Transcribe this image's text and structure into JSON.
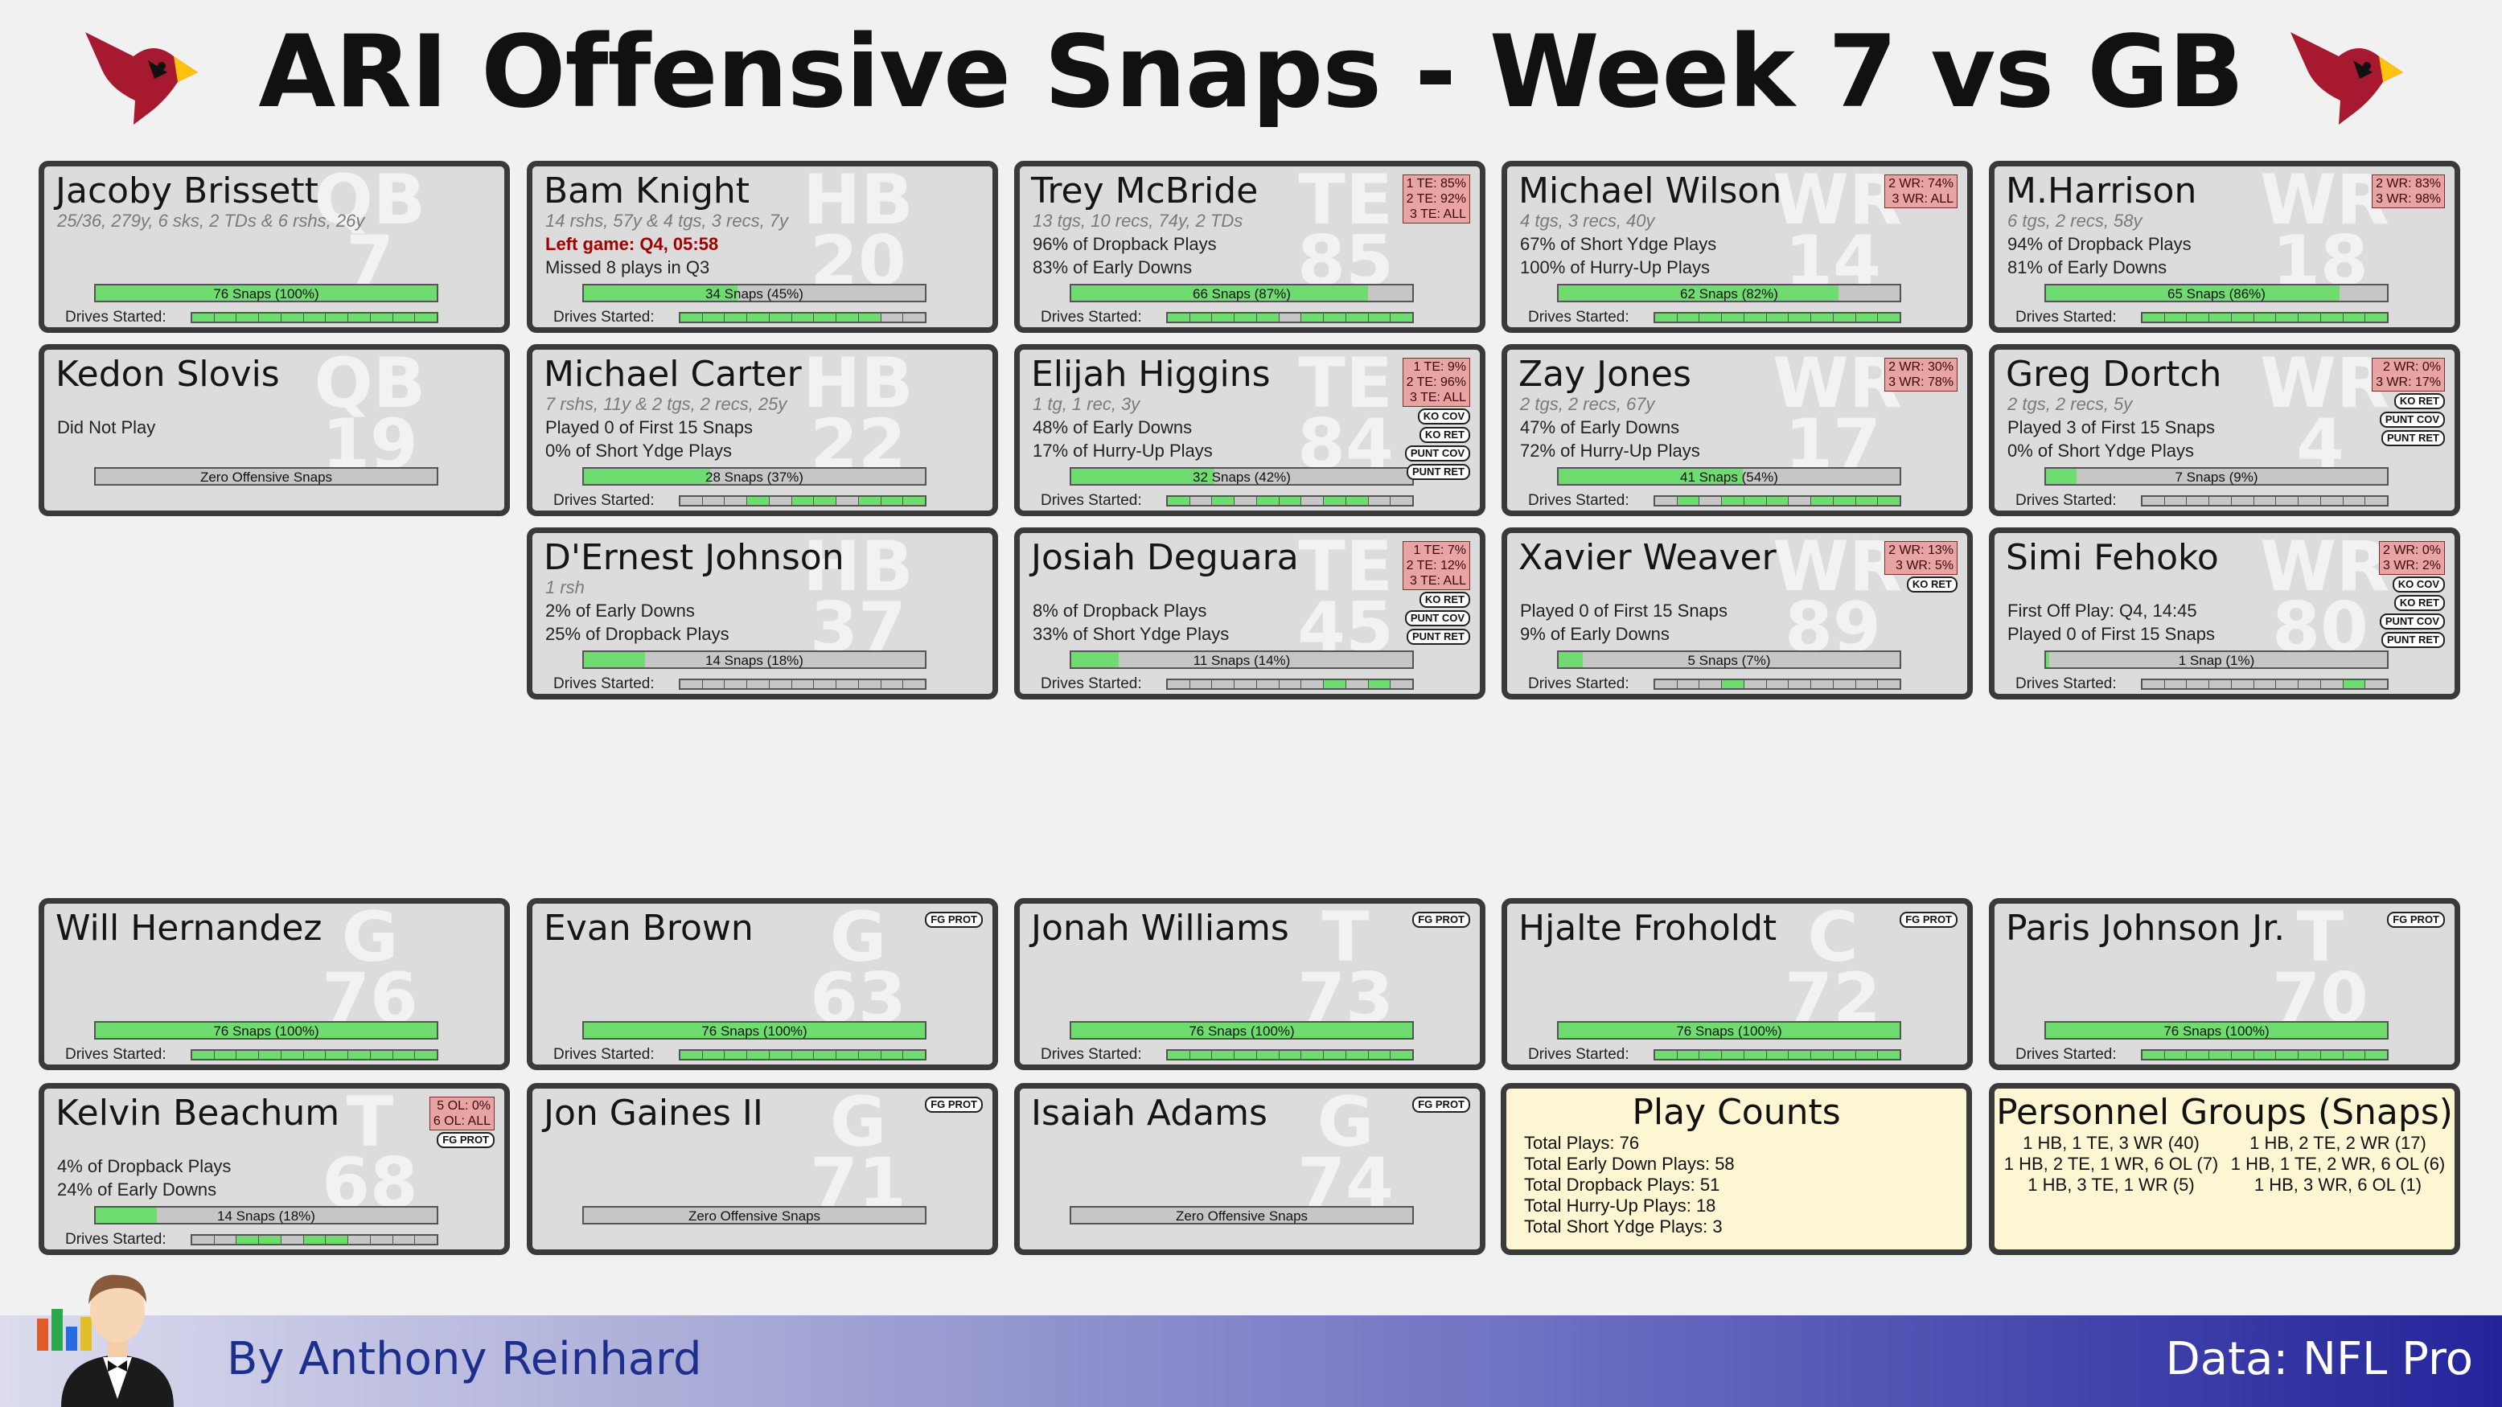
{
  "header": {
    "title": "ARI Offensive Snaps - Week 7 vs GB"
  },
  "colors": {
    "snap_fill": "#6fdc6f",
    "card_bg": "#dcdcdc",
    "info_bg": "#fcf6d3",
    "rate_box": "#e8a3a3",
    "left_game": "#a00000"
  },
  "skill_players": [
    {
      "name": "Jacoby Brissett",
      "pos": "QB",
      "num": "7",
      "sub": "25/36, 279y, 6 sks, 2 TDs & 6 rshs, 26y",
      "red": "",
      "line1": "",
      "line2": "",
      "snaps": "76 Snaps (100%)",
      "snap_pct": 1.0,
      "drives": [
        1,
        1,
        1,
        1,
        1,
        1,
        1,
        1,
        1,
        1,
        1
      ],
      "box": [],
      "badges": []
    },
    {
      "name": "Bam Knight",
      "pos": "HB",
      "num": "20",
      "sub": "14 rshs, 57y & 4 tgs, 3 recs, 7y",
      "red": "Left game: Q4, 05:58",
      "line1": "",
      "line2": "Missed 8 plays in Q3",
      "snaps": "34 Snaps (45%)",
      "snap_pct": 0.45,
      "drives": [
        1,
        1,
        1,
        1,
        1,
        1,
        1,
        1,
        1,
        0,
        0
      ],
      "box": [],
      "badges": []
    },
    {
      "name": "Trey McBride",
      "pos": "TE",
      "num": "85",
      "sub": "13 tgs, 10 recs, 74y, 2 TDs",
      "red": "",
      "line1": "96% of Dropback Plays",
      "line2": "83% of Early Downs",
      "snaps": "66 Snaps (87%)",
      "snap_pct": 0.87,
      "drives": [
        1,
        1,
        1,
        1,
        1,
        0,
        1,
        1,
        1,
        1,
        1
      ],
      "box": [
        "1 TE: 85%",
        "2 TE: 92%",
        "3 TE: ALL"
      ],
      "badges": []
    },
    {
      "name": "Michael Wilson",
      "pos": "WR",
      "num": "14",
      "sub": "4 tgs, 3 recs, 40y",
      "red": "",
      "line1": "67% of Short Ydge Plays",
      "line2": "100% of Hurry-Up Plays",
      "snaps": "62 Snaps (82%)",
      "snap_pct": 0.82,
      "drives": [
        1,
        1,
        1,
        1,
        1,
        1,
        1,
        1,
        1,
        1,
        1
      ],
      "box": [
        "2 WR: 74%",
        "3 WR: ALL"
      ],
      "badges": []
    },
    {
      "name": "M.Harrison",
      "pos": "WR",
      "num": "18",
      "sub": "6 tgs, 2 recs, 58y",
      "red": "",
      "line1": "94% of Dropback Plays",
      "line2": "81% of Early Downs",
      "snaps": "65 Snaps (86%)",
      "snap_pct": 0.86,
      "drives": [
        1,
        1,
        1,
        1,
        1,
        1,
        1,
        1,
        1,
        1,
        1
      ],
      "box": [
        "2 WR: 83%",
        "3 WR: 98%"
      ],
      "badges": []
    },
    {
      "name": "Kedon Slovis",
      "pos": "QB",
      "num": "19",
      "sub": "",
      "red": "",
      "line1": "Did Not Play",
      "line2": "",
      "snaps": "Zero Offensive Snaps",
      "snap_pct": 0,
      "drives": null,
      "box": [],
      "badges": []
    },
    {
      "name": "Michael Carter",
      "pos": "HB",
      "num": "22",
      "sub": "7 rshs, 11y & 2 tgs, 2 recs, 25y",
      "red": "",
      "line1": "Played 0 of First 15 Snaps",
      "line2": "0% of Short Ydge Plays",
      "snaps": "28 Snaps (37%)",
      "snap_pct": 0.37,
      "drives": [
        0,
        0,
        0,
        1,
        0,
        1,
        1,
        0,
        1,
        1,
        1
      ],
      "box": [],
      "badges": []
    },
    {
      "name": "Elijah Higgins",
      "pos": "TE",
      "num": "84",
      "sub": "1 tg, 1 rec, 3y",
      "red": "",
      "line1": "48% of Early Downs",
      "line2": "17% of Hurry-Up Plays",
      "snaps": "32 Snaps (42%)",
      "snap_pct": 0.42,
      "drives": [
        1,
        0,
        1,
        0,
        1,
        1,
        0,
        1,
        1,
        0,
        0
      ],
      "box": [
        "1 TE:  9%",
        "2 TE: 96%",
        "3 TE: ALL"
      ],
      "badges": [
        "KO COV",
        "KO RET",
        "PUNT COV",
        "PUNT RET"
      ]
    },
    {
      "name": "Zay Jones",
      "pos": "WR",
      "num": "17",
      "sub": "2 tgs, 2 recs, 67y",
      "red": "",
      "line1": "47% of Early Downs",
      "line2": "72% of Hurry-Up Plays",
      "snaps": "41 Snaps (54%)",
      "snap_pct": 0.54,
      "drives": [
        0,
        1,
        0,
        1,
        1,
        1,
        0,
        1,
        1,
        1,
        1
      ],
      "box": [
        "2 WR: 30%",
        "3 WR: 78%"
      ],
      "badges": []
    },
    {
      "name": "Greg Dortch",
      "pos": "WR",
      "num": "4",
      "sub": "2 tgs, 2 recs, 5y",
      "red": "",
      "line1": "Played 3 of First 15 Snaps",
      "line2": "0% of Short Ydge Plays",
      "snaps": "7 Snaps (9%)",
      "snap_pct": 0.09,
      "drives": [
        0,
        0,
        0,
        0,
        0,
        0,
        0,
        0,
        0,
        0,
        0
      ],
      "box": [
        "2 WR:  0%",
        "3 WR: 17%"
      ],
      "badges": [
        "KO RET",
        "PUNT COV",
        "PUNT RET"
      ]
    },
    {
      "name": "D'Ernest Johnson",
      "pos": "HB",
      "num": "37",
      "sub": "1 rsh",
      "red": "",
      "line1": "2% of Early Downs",
      "line2": "25% of Dropback Plays",
      "snaps": "14 Snaps (18%)",
      "snap_pct": 0.18,
      "drives": [
        0,
        0,
        0,
        0,
        0,
        0,
        0,
        0,
        0,
        0,
        0
      ],
      "box": [],
      "badges": []
    },
    {
      "name": "Josiah Deguara",
      "pos": "TE",
      "num": "45",
      "sub": "",
      "red": "",
      "line1": "8% of Dropback Plays",
      "line2": "33% of Short Ydge Plays",
      "snaps": "11 Snaps (14%)",
      "snap_pct": 0.14,
      "drives": [
        0,
        0,
        0,
        0,
        0,
        0,
        0,
        1,
        0,
        1,
        0
      ],
      "box": [
        "1 TE:  7%",
        "2 TE: 12%",
        "3 TE: ALL"
      ],
      "badges": [
        "KO RET",
        "PUNT COV",
        "PUNT RET"
      ]
    },
    {
      "name": "Xavier Weaver",
      "pos": "WR",
      "num": "89",
      "sub": "",
      "red": "",
      "line1": "Played 0 of First 15 Snaps",
      "line2": "9% of Early Downs",
      "snaps": "5 Snaps (7%)",
      "snap_pct": 0.07,
      "drives": [
        0,
        0,
        0,
        1,
        0,
        0,
        0,
        0,
        0,
        0,
        0
      ],
      "box": [
        "2 WR: 13%",
        "3 WR:  5%"
      ],
      "badges": [
        "KO RET"
      ]
    },
    {
      "name": "Simi Fehoko",
      "pos": "WR",
      "num": "80",
      "sub": "",
      "red": "",
      "line1": "First Off Play: Q4, 14:45",
      "line2": "Played 0 of First 15 Snaps",
      "snaps": "1 Snap (1%)",
      "snap_pct": 0.01,
      "drives": [
        0,
        0,
        0,
        0,
        0,
        0,
        0,
        0,
        0,
        1,
        0
      ],
      "box": [
        "2 WR:  0%",
        "3 WR:  2%"
      ],
      "badges": [
        "KO COV",
        "KO RET",
        "PUNT COV",
        "PUNT RET"
      ]
    }
  ],
  "linemen": [
    {
      "name": "Will Hernandez",
      "pos": "G",
      "num": "76",
      "line1": "",
      "line2": "",
      "snaps": "76 Snaps (100%)",
      "snap_pct": 1.0,
      "drives": [
        1,
        1,
        1,
        1,
        1,
        1,
        1,
        1,
        1,
        1,
        1
      ],
      "box": [],
      "badges": []
    },
    {
      "name": "Evan Brown",
      "pos": "G",
      "num": "63",
      "line1": "",
      "line2": "",
      "snaps": "76 Snaps (100%)",
      "snap_pct": 1.0,
      "drives": [
        1,
        1,
        1,
        1,
        1,
        1,
        1,
        1,
        1,
        1,
        1
      ],
      "box": [],
      "badges": [
        "FG PROT"
      ]
    },
    {
      "name": "Jonah Williams",
      "pos": "T",
      "num": "73",
      "line1": "",
      "line2": "",
      "snaps": "76 Snaps (100%)",
      "snap_pct": 1.0,
      "drives": [
        1,
        1,
        1,
        1,
        1,
        1,
        1,
        1,
        1,
        1,
        1
      ],
      "box": [],
      "badges": [
        "FG PROT"
      ]
    },
    {
      "name": "Hjalte Froholdt",
      "pos": "C",
      "num": "72",
      "line1": "",
      "line2": "",
      "snaps": "76 Snaps (100%)",
      "snap_pct": 1.0,
      "drives": [
        1,
        1,
        1,
        1,
        1,
        1,
        1,
        1,
        1,
        1,
        1
      ],
      "box": [],
      "badges": [
        "FG PROT"
      ]
    },
    {
      "name": "Paris Johnson Jr.",
      "pos": "T",
      "num": "70",
      "line1": "",
      "line2": "",
      "snaps": "76 Snaps (100%)",
      "snap_pct": 1.0,
      "drives": [
        1,
        1,
        1,
        1,
        1,
        1,
        1,
        1,
        1,
        1,
        1
      ],
      "box": [],
      "badges": [
        "FG PROT"
      ]
    },
    {
      "name": "Kelvin Beachum",
      "pos": "T",
      "num": "68",
      "line1": "4% of Dropback Plays",
      "line2": "24% of Early Downs",
      "snaps": "14 Snaps (18%)",
      "snap_pct": 0.18,
      "drives": [
        0,
        0,
        1,
        1,
        0,
        1,
        1,
        0,
        0,
        0,
        0
      ],
      "box": [
        "5 OL:  0%",
        "6 OL: ALL"
      ],
      "badges": [
        "FG PROT"
      ]
    },
    {
      "name": "Jon Gaines II",
      "pos": "G",
      "num": "71",
      "line1": "",
      "line2": "",
      "snaps": "Zero Offensive Snaps",
      "snap_pct": 0,
      "drives": null,
      "box": [],
      "badges": [
        "FG PROT"
      ]
    },
    {
      "name": "Isaiah Adams",
      "pos": "G",
      "num": "74",
      "line1": "",
      "line2": "",
      "snaps": "Zero Offensive Snaps",
      "snap_pct": 0,
      "drives": null,
      "box": [],
      "badges": [
        "FG PROT"
      ]
    }
  ],
  "drives_label": "Drives Started:",
  "play_counts": {
    "title": "Play Counts",
    "rows": [
      "Total Plays: 76",
      "Total Early Down Plays: 58",
      "Total Dropback Plays: 51",
      "Total Hurry-Up Plays: 18",
      "Total Short Ydge Plays: 3"
    ]
  },
  "personnel": {
    "title": "Personnel Groups (Snaps)",
    "rows": [
      "1 HB, 1 TE, 3 WR (40)",
      "1 HB, 2 TE, 2 WR (17)",
      "1 HB, 2 TE, 1 WR, 6 OL (7)",
      "1 HB, 1 TE, 2 WR, 6 OL (6)",
      "1 HB, 3 TE, 1 WR (5)",
      "1 HB, 3 WR, 6 OL (1)"
    ]
  },
  "footer": {
    "byline": "By Anthony Reinhard",
    "source": "Data: NFL Pro"
  }
}
